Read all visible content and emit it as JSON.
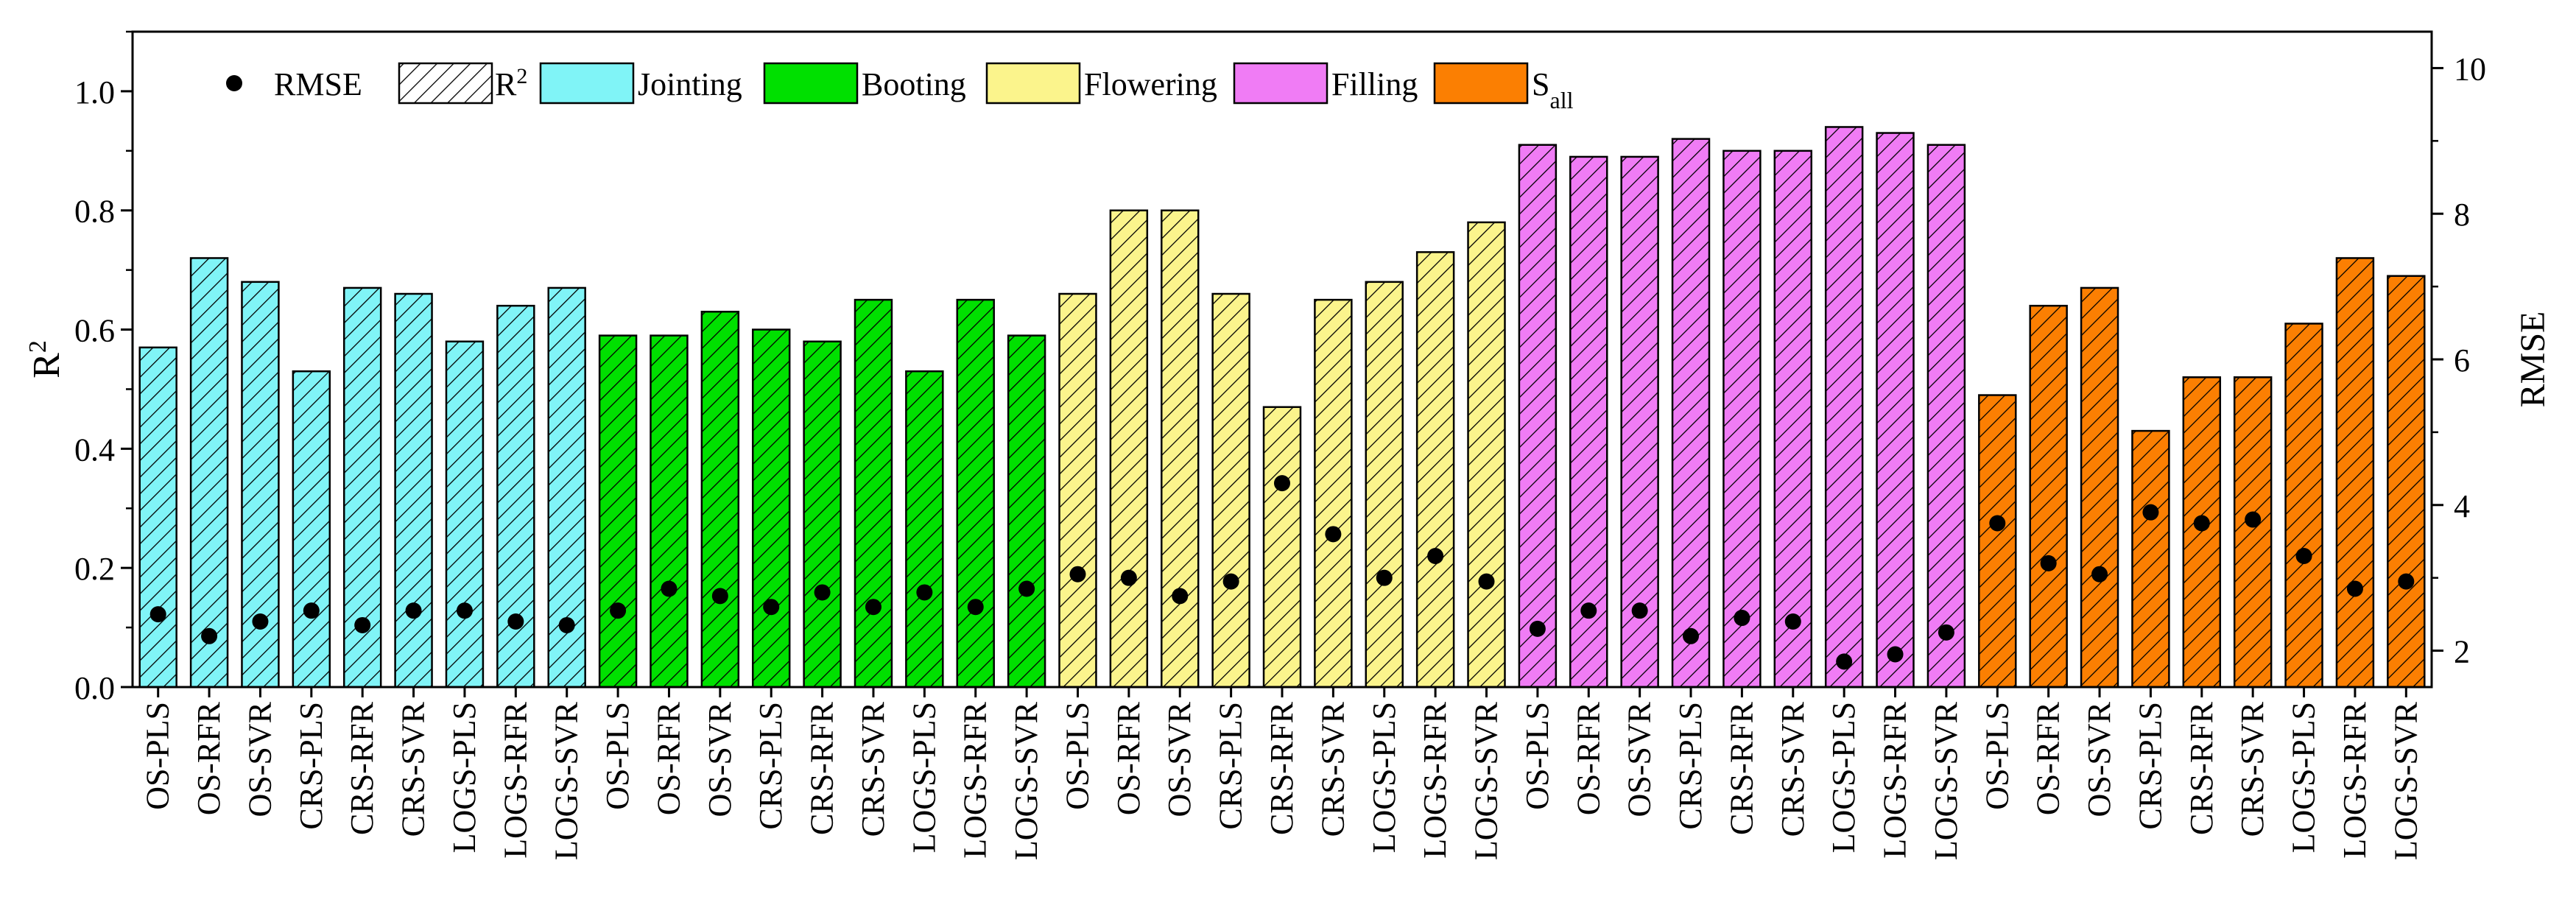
{
  "chart_data": {
    "type": "bar",
    "title": "",
    "xlabel": "",
    "ylabel": "R",
    "ylabel_sup": "2",
    "y2label": "RMSE",
    "ylim": [
      0,
      1.1
    ],
    "y2lim": [
      1.5,
      10.5
    ],
    "yticks": [
      "0.0",
      "0.2",
      "0.4",
      "0.6",
      "0.8",
      "1.0"
    ],
    "y2ticks": [
      "2",
      "4",
      "6",
      "8",
      "10"
    ],
    "categories": [
      "OS-PLS",
      "OS-RFR",
      "OS-SVR",
      "CRS-PLS",
      "CRS-RFR",
      "CRS-SVR",
      "LOGS-PLS",
      "LOGS-RFR",
      "LOGS-SVR",
      "OS-PLS",
      "OS-RFR",
      "OS-SVR",
      "CRS-PLS",
      "CRS-RFR",
      "CRS-SVR",
      "LOGS-PLS",
      "LOGS-RFR",
      "LOGS-SVR",
      "OS-PLS",
      "OS-RFR",
      "OS-SVR",
      "CRS-PLS",
      "CRS-RFR",
      "CRS-SVR",
      "LOGS-PLS",
      "LOGS-RFR",
      "LOGS-SVR",
      "OS-PLS",
      "OS-RFR",
      "OS-SVR",
      "CRS-PLS",
      "CRS-RFR",
      "CRS-SVR",
      "LOGS-PLS",
      "LOGS-RFR",
      "LOGS-SVR",
      "OS-PLS",
      "OS-RFR",
      "OS-SVR",
      "CRS-PLS",
      "CRS-RFR",
      "CRS-SVR",
      "LOGS-PLS",
      "LOGS-RFR",
      "LOGS-SVR"
    ],
    "series": [
      {
        "name": "Jointing",
        "color": "#80f4f7",
        "r2": [
          0.57,
          0.72,
          0.68,
          0.53,
          0.67,
          0.66,
          0.58,
          0.64,
          0.67
        ],
        "rmse": [
          2.5,
          2.2,
          2.4,
          2.55,
          2.35,
          2.55,
          2.55,
          2.4,
          2.35
        ]
      },
      {
        "name": "Booting",
        "color": "#00e000",
        "r2": [
          0.59,
          0.59,
          0.63,
          0.6,
          0.58,
          0.65,
          0.53,
          0.65,
          0.59
        ],
        "rmse": [
          2.55,
          2.85,
          2.75,
          2.6,
          2.8,
          2.6,
          2.8,
          2.6,
          2.85
        ]
      },
      {
        "name": "Flowering",
        "color": "#fbf48c",
        "r2": [
          0.66,
          0.8,
          0.8,
          0.66,
          0.47,
          0.65,
          0.68,
          0.73,
          0.78
        ],
        "rmse": [
          3.05,
          3.0,
          2.75,
          2.95,
          4.3,
          3.6,
          3.0,
          3.3,
          2.95
        ]
      },
      {
        "name": "Filling",
        "color": "#f07cf5",
        "r2": [
          0.91,
          0.89,
          0.89,
          0.92,
          0.9,
          0.9,
          0.94,
          0.93,
          0.91
        ],
        "rmse": [
          2.3,
          2.55,
          2.55,
          2.2,
          2.45,
          2.4,
          1.85,
          1.95,
          2.25
        ]
      },
      {
        "name": "S_all",
        "color": "#fb7f02",
        "r2": [
          0.49,
          0.64,
          0.67,
          0.43,
          0.52,
          0.52,
          0.61,
          0.72,
          0.69
        ],
        "rmse": [
          3.75,
          3.2,
          3.05,
          3.9,
          3.75,
          3.8,
          3.3,
          2.85,
          2.95
        ]
      }
    ],
    "legend": {
      "placement": "top-left",
      "rmse_label": "RMSE",
      "r2_label": "R",
      "r2_sup": "2",
      "entries": [
        "Jointing",
        "Booting",
        "Flowering",
        "Filling",
        "S"
      ],
      "last_sub": "all"
    }
  }
}
